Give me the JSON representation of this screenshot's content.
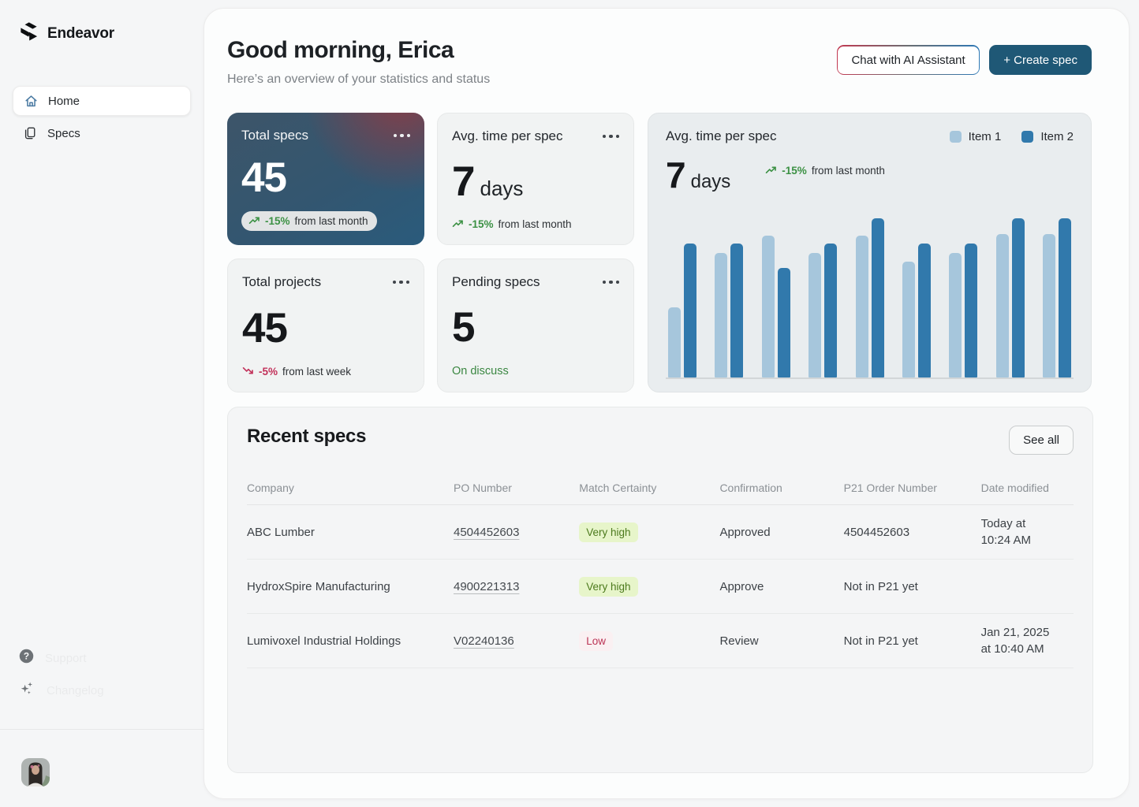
{
  "brand": {
    "name": "Endeavor"
  },
  "sidebar": {
    "items": [
      {
        "label": "Home",
        "icon": "home-icon",
        "active": true
      },
      {
        "label": "Specs",
        "icon": "documents-icon",
        "active": false
      }
    ],
    "ghost_labels": {
      "support": "Support",
      "changelog": "Changelog"
    }
  },
  "header": {
    "greeting": "Good morning, Erica",
    "subtitle": "Here’s an overview of your statistics and status",
    "chat_button_label": "Chat with AI Assistant",
    "create_button_label": "+ Create spec"
  },
  "stats": {
    "total_specs": {
      "title": "Total specs",
      "value": "45",
      "trend": "-15%",
      "trend_suffix": "from last month",
      "trend_direction": "up"
    },
    "avg_time": {
      "title": "Avg. time per spec",
      "value": "7",
      "unit": "days",
      "trend": "-15%",
      "trend_suffix": "from last month",
      "trend_direction": "up"
    },
    "total_projects": {
      "title": "Total projects",
      "value": "45",
      "trend": "-5%",
      "trend_suffix": "from last week",
      "trend_direction": "down"
    },
    "pending_specs": {
      "title": "Pending specs",
      "value": "5",
      "note": "On discuss"
    }
  },
  "chart_card": {
    "title": "Avg. time per spec",
    "value": "7",
    "unit": "days",
    "trend": "-15%",
    "trend_suffix": "from last month",
    "legend": [
      {
        "label": "Item 1",
        "color": "#a6c6dc"
      },
      {
        "label": "Item 2",
        "color": "#3179ac"
      }
    ]
  },
  "chart_data": {
    "type": "bar",
    "title": "Avg. time per spec",
    "categories": [
      "",
      "",
      "",
      "",
      "",
      "",
      "",
      "",
      ""
    ],
    "series": [
      {
        "name": "Item 1",
        "values": [
          44,
          78,
          89,
          78,
          89,
          73,
          78,
          90,
          90
        ]
      },
      {
        "name": "Item 2",
        "values": [
          84,
          84,
          69,
          84,
          100,
          84,
          84,
          100,
          100
        ]
      }
    ],
    "ylim": [
      0,
      100
    ],
    "unit": "percent of max bar height (no numeric axis shown)",
    "grid": false,
    "legend_position": "top-right",
    "xlabel": "",
    "ylabel": ""
  },
  "table": {
    "title": "Recent specs",
    "see_all_label": "See all",
    "columns": [
      "Company",
      "PO Number",
      "Match Certainty",
      "Confirmation",
      "P21 Order Number",
      "Date modified"
    ],
    "rows": [
      {
        "company": "ABC Lumber",
        "po": "4504452603",
        "match": "Very high",
        "confirmation": "Approved",
        "p21": "4504452603",
        "date_line1": "Today at",
        "date_line2": "10:24 AM"
      },
      {
        "company": "HydroxSpire Manufacturing",
        "po": "4900221313",
        "match": "Very high",
        "confirmation": "Approve",
        "p21": "Not in P21 yet",
        "date_line1": "",
        "date_line2": ""
      },
      {
        "company": "Lumivoxel Industrial Holdings",
        "po": "V02240136",
        "match": "Low",
        "confirmation": "Review",
        "p21": "Not in P21 yet",
        "date_line1": "Jan 21, 2025",
        "date_line2": "at 10:40 AM"
      }
    ]
  },
  "colors": {
    "accent_dark_teal": "#1f5876",
    "chat_border_red": "#c23a52",
    "chat_border_blue": "#2e78b5",
    "trend_green": "#3c9144",
    "trend_red": "#c2315a",
    "badge_green_bg": "#e7f5ca",
    "badge_green_text": "#4c7a1d",
    "badge_red_text": "#bb3355",
    "dark_card_top": "#923a42",
    "dark_card_base": "#2a5b7c",
    "bar_light": "#a6c6dc",
    "bar_dark": "#3179ac"
  }
}
